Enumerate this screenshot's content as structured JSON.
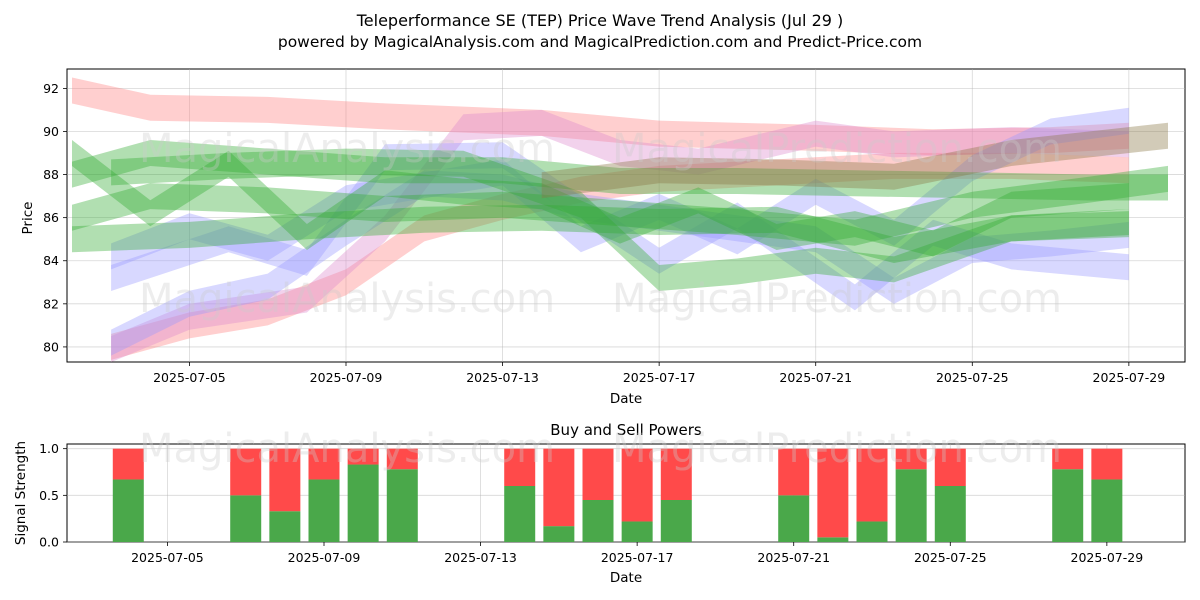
{
  "title": "Teleperformance SE (TEP) Price Wave Trend Analysis (Jul 29 )",
  "subtitle": "powered by MagicalAnalysis.com and MagicalPrediction.com and Predict-Price.com",
  "watermarks": [
    "MagicalAnalysis.com",
    "MagicalPrediction.com"
  ],
  "chart_data": [
    {
      "type": "area",
      "title": "",
      "xlabel": "Date",
      "ylabel": "Price",
      "xlim": [
        "2025-07-02",
        "2025-07-30"
      ],
      "ylim": [
        79.3,
        92.9
      ],
      "xticks": [
        "2025-07-05",
        "2025-07-09",
        "2025-07-13",
        "2025-07-17",
        "2025-07-21",
        "2025-07-25",
        "2025-07-29"
      ],
      "yticks": [
        80,
        82,
        84,
        86,
        88,
        90,
        92
      ],
      "grid": true,
      "series": [
        {
          "color": "#ff8080",
          "x": [
            "2025-07-02",
            "2025-07-04",
            "2025-07-07",
            "2025-07-10",
            "2025-07-14",
            "2025-07-17",
            "2025-07-21",
            "2025-07-24",
            "2025-07-27",
            "2025-07-29"
          ],
          "values": [
            91.9,
            91.1,
            91.0,
            90.7,
            90.4,
            89.9,
            89.7,
            89.5,
            89.6,
            89.8
          ]
        },
        {
          "color": "#ff8080",
          "x": [
            "2025-07-03",
            "2025-07-05",
            "2025-07-07",
            "2025-07-09",
            "2025-07-11",
            "2025-07-13",
            "2025-07-15",
            "2025-07-17",
            "2025-07-20",
            "2025-07-23",
            "2025-07-26",
            "2025-07-29"
          ],
          "values": [
            80.0,
            81.0,
            81.6,
            83.0,
            85.5,
            86.5,
            87.3,
            87.8,
            88.1,
            88.4,
            88.4,
            88.2
          ]
        },
        {
          "color": "#dd88cc",
          "x": [
            "2025-07-03",
            "2025-07-05",
            "2025-07-08",
            "2025-07-10",
            "2025-07-12",
            "2025-07-14",
            "2025-07-16",
            "2025-07-18",
            "2025-07-21",
            "2025-07-23",
            "2025-07-26",
            "2025-07-29"
          ],
          "values": [
            79.9,
            81.4,
            82.2,
            85.5,
            90.2,
            90.4,
            89.0,
            88.6,
            89.9,
            89.4,
            89.6,
            89.4
          ]
        },
        {
          "color": "#9999ff",
          "x": [
            "2025-07-03",
            "2025-07-05",
            "2025-07-07",
            "2025-07-09",
            "2025-07-11",
            "2025-07-13",
            "2025-07-15",
            "2025-07-17",
            "2025-07-19",
            "2025-07-21",
            "2025-07-23",
            "2025-07-25",
            "2025-07-27",
            "2025-07-29"
          ],
          "values": [
            80.2,
            82.0,
            82.8,
            85.3,
            87.6,
            87.4,
            86.5,
            86.0,
            85.5,
            85.0,
            82.6,
            84.5,
            84.8,
            85.2
          ]
        },
        {
          "color": "#9999ff",
          "x": [
            "2025-07-03",
            "2025-07-05",
            "2025-07-07",
            "2025-07-09",
            "2025-07-11",
            "2025-07-13",
            "2025-07-15",
            "2025-07-17",
            "2025-07-19",
            "2025-07-21",
            "2025-07-23",
            "2025-07-25",
            "2025-07-27",
            "2025-07-29"
          ],
          "values": [
            84.2,
            85.6,
            84.6,
            86.9,
            87.5,
            88.1,
            85.0,
            86.5,
            84.9,
            87.2,
            85.3,
            88.3,
            90.0,
            90.5
          ]
        },
        {
          "color": "#9999ff",
          "x": [
            "2025-07-03",
            "2025-07-06",
            "2025-07-08",
            "2025-07-10",
            "2025-07-13",
            "2025-07-15",
            "2025-07-17",
            "2025-07-19",
            "2025-07-22",
            "2025-07-24",
            "2025-07-26",
            "2025-07-29"
          ],
          "values": [
            83.2,
            85.0,
            83.9,
            88.8,
            88.9,
            86.4,
            84.0,
            86.1,
            82.3,
            85.3,
            84.2,
            83.7
          ]
        },
        {
          "color": "#33aa33",
          "x": [
            "2025-07-02",
            "2025-07-04",
            "2025-07-07",
            "2025-07-10",
            "2025-07-13",
            "2025-07-16",
            "2025-07-19",
            "2025-07-22",
            "2025-07-25",
            "2025-07-28",
            "2025-07-30"
          ],
          "values": [
            88.0,
            89.0,
            88.6,
            88.2,
            88.2,
            87.7,
            87.7,
            87.6,
            87.5,
            87.4,
            87.4
          ]
        },
        {
          "color": "#33aa33",
          "x": [
            "2025-07-02",
            "2025-07-04",
            "2025-07-07",
            "2025-07-10",
            "2025-07-13",
            "2025-07-16",
            "2025-07-19",
            "2025-07-22",
            "2025-07-25",
            "2025-07-28",
            "2025-07-30"
          ],
          "values": [
            86.0,
            87.0,
            86.8,
            86.4,
            86.6,
            86.2,
            85.8,
            85.3,
            86.6,
            87.3,
            87.8
          ]
        },
        {
          "color": "#33aa33",
          "x": [
            "2025-07-02",
            "2025-07-05",
            "2025-07-08",
            "2025-07-11",
            "2025-07-14",
            "2025-07-17",
            "2025-07-20",
            "2025-07-23",
            "2025-07-26",
            "2025-07-29"
          ],
          "values": [
            85.0,
            85.2,
            85.6,
            85.9,
            86.0,
            85.8,
            85.9,
            84.5,
            85.5,
            85.7
          ]
        },
        {
          "color": "#33aa33",
          "x": [
            "2025-07-02",
            "2025-07-04",
            "2025-07-06",
            "2025-07-08",
            "2025-07-10",
            "2025-07-12",
            "2025-07-14",
            "2025-07-16",
            "2025-07-18",
            "2025-07-20",
            "2025-07-22",
            "2025-07-24",
            "2025-07-26",
            "2025-07-29"
          ],
          "values": [
            89.0,
            86.2,
            88.5,
            85.1,
            87.6,
            87.2,
            87.0,
            85.4,
            86.8,
            85.1,
            85.7,
            84.8,
            86.6,
            87.0
          ]
        },
        {
          "color": "#33aa33",
          "x": [
            "2025-07-03",
            "2025-07-06",
            "2025-07-09",
            "2025-07-12",
            "2025-07-15",
            "2025-07-17",
            "2025-07-19",
            "2025-07-21",
            "2025-07-23",
            "2025-07-26",
            "2025-07-29"
          ],
          "values": [
            88.1,
            88.4,
            88.6,
            88.5,
            86.6,
            83.2,
            83.5,
            84.0,
            83.6,
            85.5,
            85.8
          ]
        },
        {
          "color": "#887744",
          "x": [
            "2025-07-14",
            "2025-07-17",
            "2025-07-20",
            "2025-07-23",
            "2025-07-26",
            "2025-07-30"
          ],
          "values": [
            87.5,
            88.2,
            88.1,
            87.9,
            89.0,
            89.8
          ]
        }
      ]
    },
    {
      "type": "bar",
      "title": "Buy and Sell Powers",
      "xlabel": "Date",
      "ylabel": "Signal Strength",
      "ylim": [
        0,
        1.05
      ],
      "xticks": [
        "2025-07-05",
        "2025-07-09",
        "2025-07-13",
        "2025-07-17",
        "2025-07-21",
        "2025-07-25",
        "2025-07-29"
      ],
      "yticks": [
        "0.0",
        "0.5",
        "1.0"
      ],
      "grid": true,
      "dates": [
        "2025-07-04",
        "2025-07-07",
        "2025-07-08",
        "2025-07-09",
        "2025-07-10",
        "2025-07-11",
        "2025-07-14",
        "2025-07-15",
        "2025-07-16",
        "2025-07-17",
        "2025-07-18",
        "2025-07-21",
        "2025-07-22",
        "2025-07-23",
        "2025-07-24",
        "2025-07-25",
        "2025-07-28",
        "2025-07-29"
      ],
      "series": [
        {
          "name": "Buy",
          "color": "#4aa84a",
          "values": [
            0.67,
            0.5,
            0.33,
            0.67,
            0.83,
            0.78,
            0.6,
            0.17,
            0.45,
            0.22,
            0.45,
            0.5,
            0.05,
            0.22,
            0.78,
            0.6,
            0.78,
            0.67
          ]
        },
        {
          "name": "Sell",
          "color": "#ff4a4a",
          "values": [
            0.33,
            0.5,
            0.67,
            0.33,
            0.17,
            0.22,
            0.4,
            0.83,
            0.55,
            0.78,
            0.55,
            0.5,
            0.95,
            0.78,
            0.22,
            0.4,
            0.22,
            0.33
          ]
        }
      ]
    }
  ]
}
